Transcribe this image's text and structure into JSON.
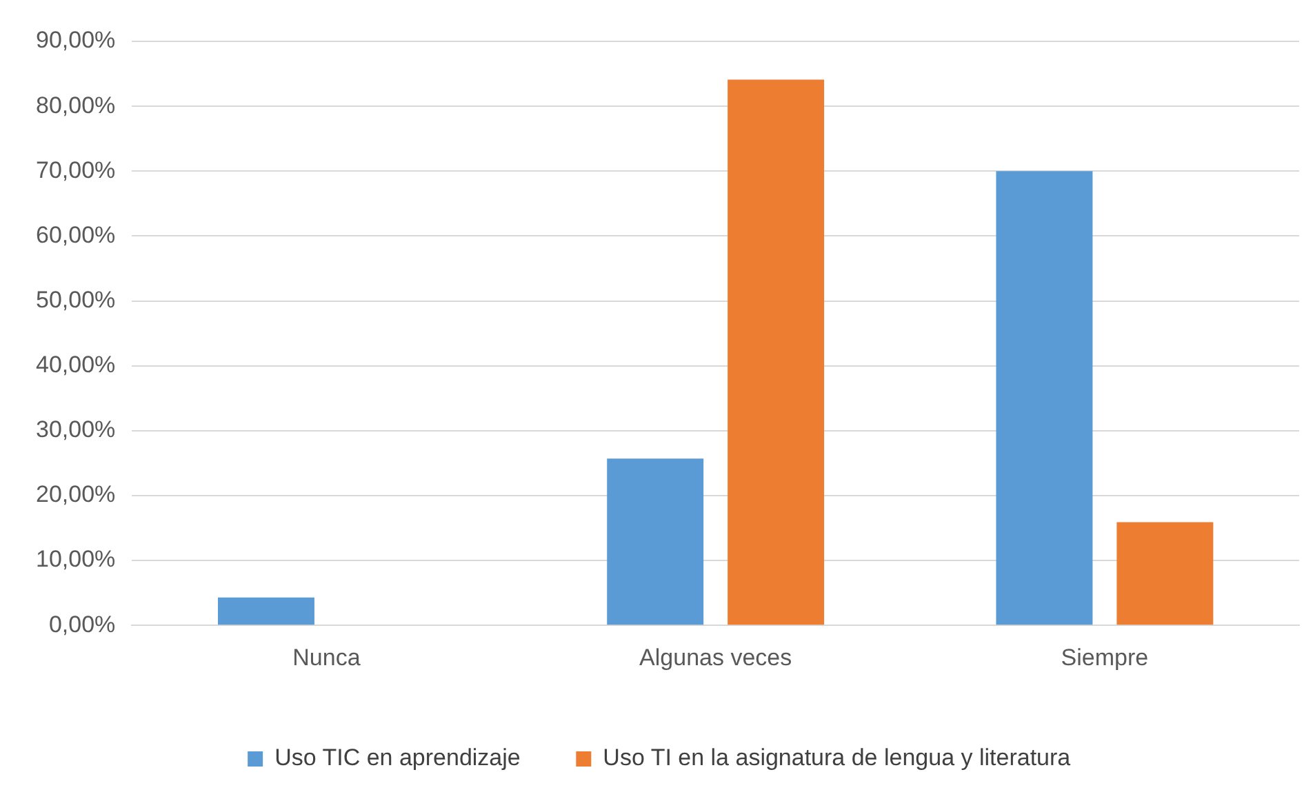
{
  "chart_data": {
    "type": "bar",
    "categories": [
      "Nunca",
      "Algunas veces",
      "Siempre"
    ],
    "series": [
      {
        "name": "Uso TIC en aprendizaje",
        "color": "#5b9bd5",
        "values": [
          4.3,
          25.7,
          70.0
        ]
      },
      {
        "name": "Uso TI en la asignatura de lengua y literatura",
        "color": "#ed7d31",
        "values": [
          0,
          84.1,
          15.9
        ]
      }
    ],
    "ylim": [
      0,
      90
    ],
    "yticks": [
      {
        "value": 0,
        "label": "0,00%"
      },
      {
        "value": 10,
        "label": "10,00%"
      },
      {
        "value": 20,
        "label": "20,00%"
      },
      {
        "value": 30,
        "label": "30,00%"
      },
      {
        "value": 40,
        "label": "40,00%"
      },
      {
        "value": 50,
        "label": "50,00%"
      },
      {
        "value": 60,
        "label": "60,00%"
      },
      {
        "value": 70,
        "label": "70,00%"
      },
      {
        "value": 80,
        "label": "80,00%"
      },
      {
        "value": 90,
        "label": "90,00%"
      }
    ],
    "grid": "y",
    "legend": "bottom"
  }
}
